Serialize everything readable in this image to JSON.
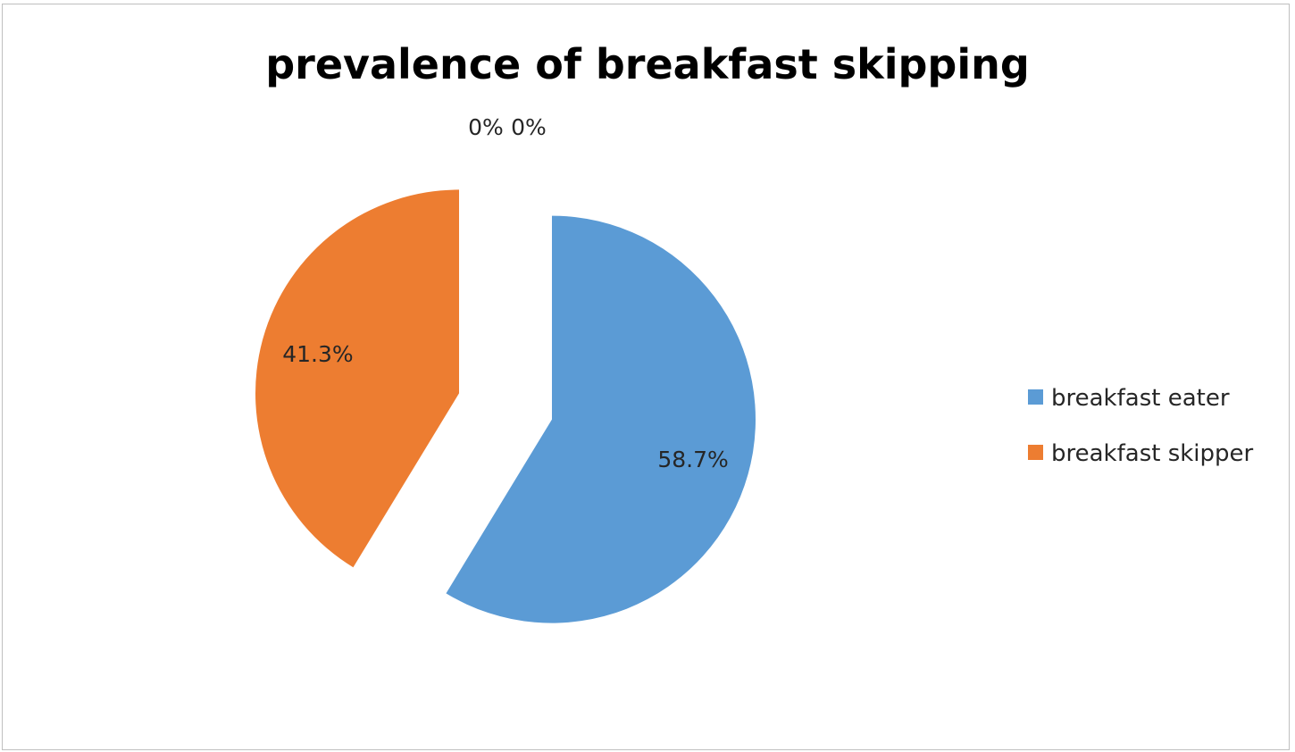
{
  "chart_data": {
    "type": "pie",
    "title": "prevalence of breakfast skipping",
    "slices": [
      {
        "name": "breakfast eater",
        "value": 58.7,
        "label": "58.7%",
        "color": "#5b9bd5",
        "exploded": true
      },
      {
        "name": "breakfast skipper",
        "value": 41.3,
        "label": "41.3%",
        "color": "#ed7d31",
        "exploded": true
      },
      {
        "name": "",
        "value": 0,
        "label": "0%",
        "color": "#a5a5a5",
        "exploded": false
      },
      {
        "name": "",
        "value": 0,
        "label": "0%",
        "color": "#ffc000",
        "exploded": false
      }
    ],
    "legend": {
      "position": "right",
      "entries": [
        "breakfast eater",
        "breakfast skipper"
      ]
    }
  }
}
